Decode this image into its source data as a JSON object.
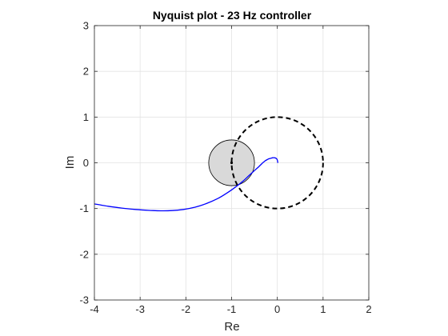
{
  "chart_data": {
    "type": "line",
    "title": "Nyquist plot - 23 Hz controller",
    "xlabel": "Re",
    "ylabel": "Im",
    "xlim": [
      -4,
      2
    ],
    "ylim": [
      -3,
      3
    ],
    "xticks": [
      -4,
      -3,
      -2,
      -1,
      0,
      1,
      2
    ],
    "yticks": [
      -3,
      -2,
      -1,
      0,
      1,
      2,
      3
    ],
    "grid": true,
    "series": [
      {
        "color": "#0000ff",
        "style": "solid",
        "x": [
          -4.0,
          -3.7,
          -3.4,
          -3.1,
          -2.8,
          -2.55,
          -2.3,
          -2.05,
          -1.8,
          -1.55,
          -1.3,
          -1.1,
          -0.9,
          -0.75,
          -0.62,
          -0.5,
          -0.4,
          -0.33,
          -0.27,
          -0.22,
          -0.18,
          -0.14,
          -0.1,
          -0.06,
          -0.03,
          -0.01,
          0.0,
          0.005,
          0.01,
          0.0
        ],
        "y": [
          -0.9,
          -0.95,
          -0.99,
          -1.02,
          -1.04,
          -1.05,
          -1.045,
          -1.02,
          -0.97,
          -0.89,
          -0.78,
          -0.66,
          -0.52,
          -0.4,
          -0.28,
          -0.17,
          -0.08,
          -0.01,
          0.04,
          0.07,
          0.09,
          0.1,
          0.11,
          0.11,
          0.1,
          0.08,
          0.06,
          0.03,
          0.01,
          0.0
        ]
      }
    ],
    "unit_circle": {
      "center": [
        0,
        0
      ],
      "radius": 1,
      "style": "dashed",
      "color": "#000000"
    },
    "critical_region": {
      "center": [
        -1,
        0
      ],
      "radius": 0.5,
      "fill": "#d9d9d9",
      "edge": "#000000",
      "marker_at": [
        -1,
        0
      ]
    }
  }
}
